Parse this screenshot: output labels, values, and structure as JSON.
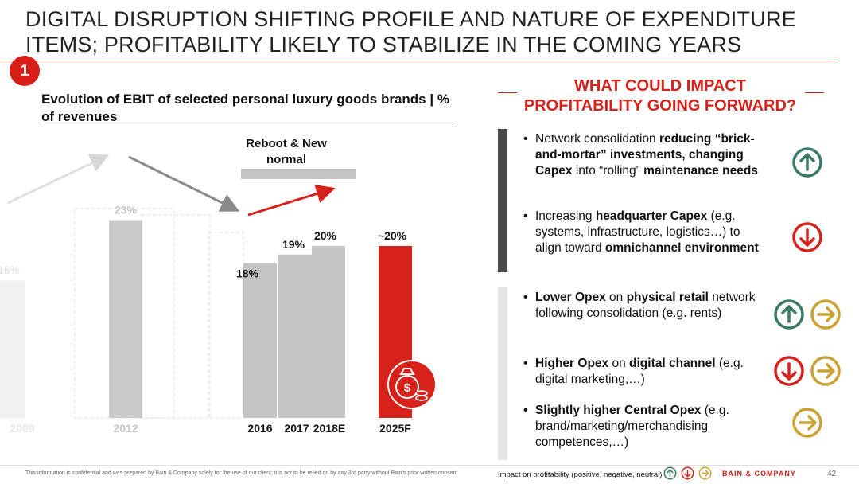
{
  "slide": {
    "title": "DIGITAL DISRUPTION SHIFTING PROFILE AND NATURE OF EXPENDITURE ITEMS; PROFITABILITY LIKELY TO STABILIZE IN THE COMING YEARS",
    "badge": "1",
    "page_number": "42",
    "footer_disclaimer": "This information is confidential and was prepared by Bain & Company solely for the use of our client; it is not to be relied on by any 3rd party without Bain's prior written consent",
    "legend_label": "Impact on profitability (positive, negative, neutral)",
    "brand": "BAIN & COMPANY",
    "colors": {
      "accent": "#d6221a",
      "positive": "#3a7a6a",
      "negative": "#d6221a",
      "neutral": "#c9a233",
      "bar_grey": "#c4c4c4"
    }
  },
  "chart_data": {
    "type": "bar",
    "title": "Evolution of EBIT of selected personal luxury goods brands | % of revenues",
    "categories": [
      "2009",
      "2012",
      "2016",
      "2017",
      "2018E",
      "2025F"
    ],
    "values": [
      16,
      23,
      18,
      19,
      20,
      20
    ],
    "value_labels": [
      "16%",
      "23%",
      "18%",
      "19%",
      "20%",
      "~20%"
    ],
    "period_label": "Reboot & New normal",
    "highlight": "2025F",
    "faded": [
      "2009",
      "2012"
    ],
    "ylim": [
      0,
      30
    ]
  },
  "right_panel": {
    "title_line1": "WHAT COULD IMPACT",
    "title_line2": "PROFITABILITY GOING FORWARD?",
    "items": [
      {
        "segments": [
          [
            "Network consolidation ",
            false
          ],
          [
            "reducing “brick-and-mortar” investments, changing Capex",
            true
          ],
          [
            " into “rolling” ",
            false
          ],
          [
            "maintenance needs",
            true
          ]
        ],
        "icons": [
          "up-icon"
        ]
      },
      {
        "segments": [
          [
            "Increasing ",
            false
          ],
          [
            "headquarter Capex",
            true
          ],
          [
            " (e.g. systems, infrastructure, logistics…) to align toward ",
            false
          ],
          [
            "omnichannel environment",
            true
          ]
        ],
        "icons": [
          "down-icon"
        ]
      },
      {
        "segments": [
          [
            "Lower Opex",
            true
          ],
          [
            " on ",
            false
          ],
          [
            "physical retail",
            true
          ],
          [
            " network following consolidation (e.g. rents)",
            false
          ]
        ],
        "icons": [
          "up-icon",
          "neutral-icon"
        ]
      },
      {
        "segments": [
          [
            "Higher Opex",
            true
          ],
          [
            " on ",
            false
          ],
          [
            "digital channel",
            true
          ],
          [
            " (e.g. digital marketing,…)",
            false
          ]
        ],
        "icons": [
          "down-icon",
          "neutral-icon"
        ]
      },
      {
        "segments": [
          [
            "Slightly higher Central Opex",
            true
          ],
          [
            " (e.g. brand/marketing/merchandising competences,…)",
            false
          ]
        ],
        "icons": [
          "neutral-icon"
        ]
      }
    ]
  }
}
